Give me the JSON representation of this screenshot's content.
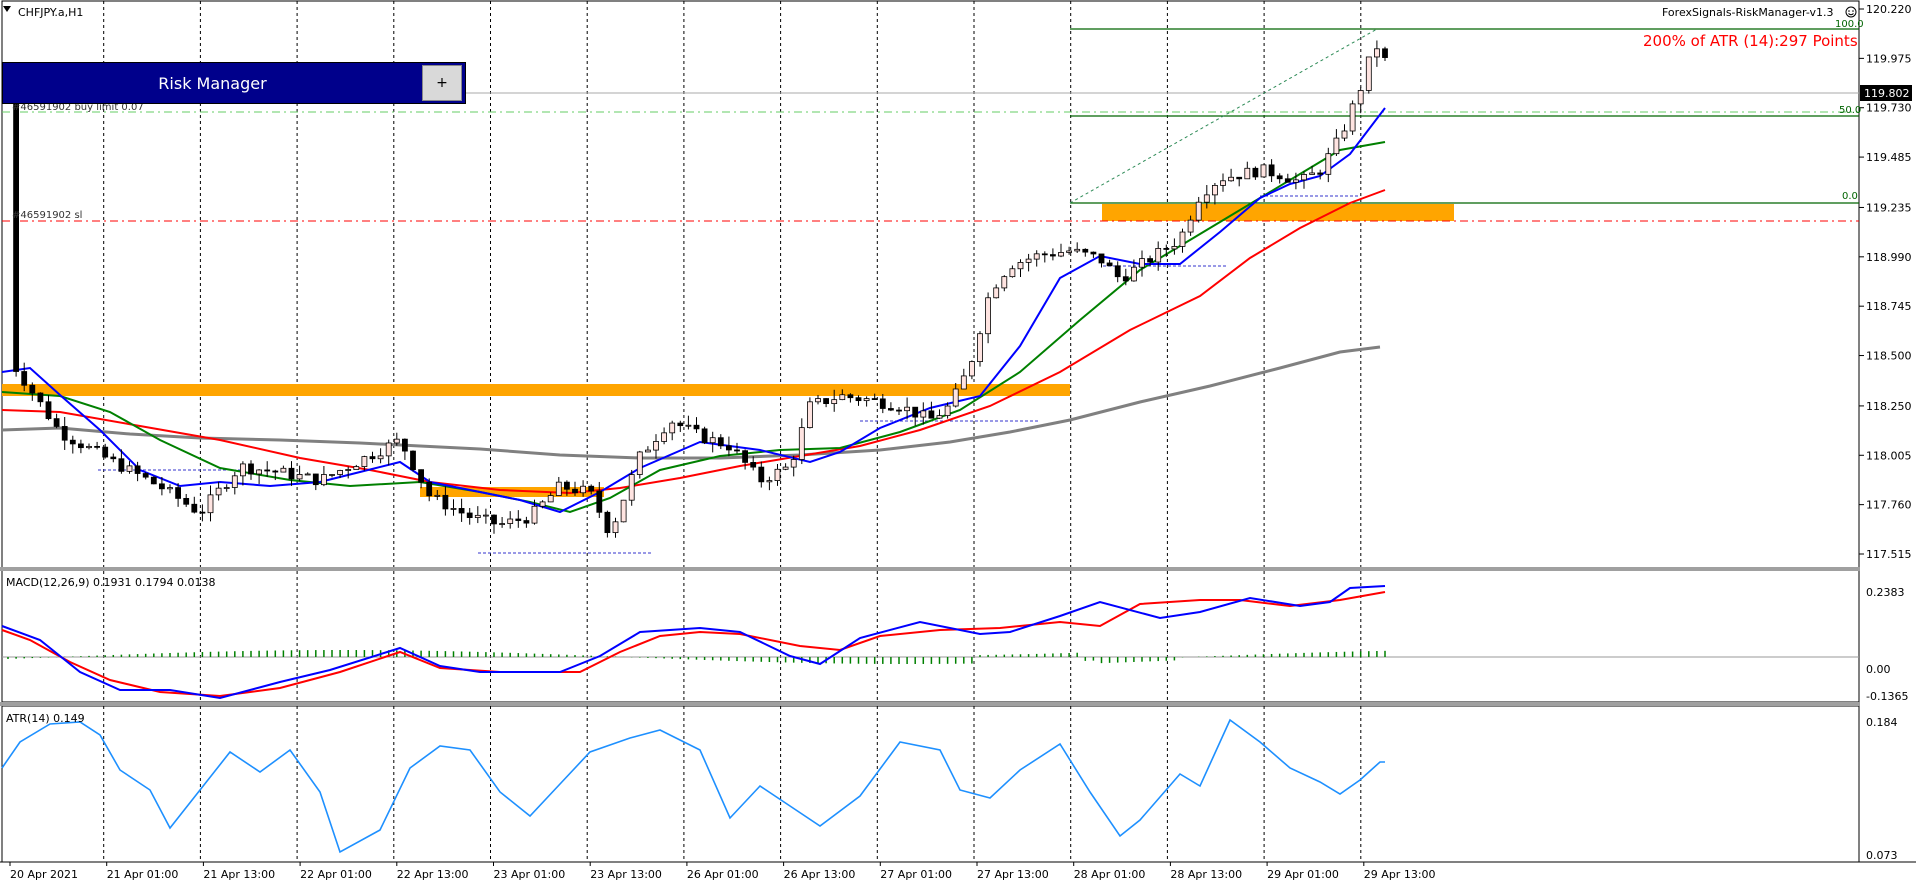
{
  "chart": {
    "symbol_label": "CHFJPY.a,H1",
    "indicator_name": "ForexSignals-RiskManager-v1.3",
    "smiley_icon": "smiley-icon",
    "atr_text": "200% of ATR (14):297 Points",
    "current_price": "119.802",
    "price_ticks": [
      "120.220",
      "119.975",
      "119.730",
      "119.485",
      "119.235",
      "118.990",
      "118.745",
      "118.500",
      "118.250",
      "118.005",
      "117.760",
      "117.515"
    ],
    "time_ticks": [
      "20 Apr 2021",
      "21 Apr 01:00",
      "21 Apr 13:00",
      "22 Apr 01:00",
      "22 Apr 13:00",
      "23 Apr 01:00",
      "23 Apr 13:00",
      "26 Apr 01:00",
      "26 Apr 13:00",
      "27 Apr 01:00",
      "27 Apr 13:00",
      "28 Apr 01:00",
      "28 Apr 13:00",
      "29 Apr 01:00",
      "29 Apr 13:00"
    ],
    "fib_labels": [
      "100.0",
      "50.0",
      "0.0"
    ],
    "order_labels": {
      "buy_limit": "#46591902 buy limit 0.07",
      "sl": "#46591902 sl"
    },
    "colors": {
      "ema_fast": "#0000ff",
      "ema_mid": "#008000",
      "ema_slow": "#ff0000",
      "sma_long": "#808080",
      "zone": "#ffa500",
      "bull_body": "#ffe4e1",
      "atr_line": "#1e90ff",
      "fib": "#006400",
      "sl_line": "#ff0000"
    }
  },
  "risk_manager": {
    "title": "Risk Manager",
    "button_label": "+"
  },
  "macd": {
    "label": "MACD(12,26,9) 0.1931 0.1794 0.0138",
    "ticks": [
      "0.2383",
      "0.00",
      "-0.1365"
    ]
  },
  "atr": {
    "label": "ATR(14) 0.149",
    "ticks": [
      "0.184",
      "0.073"
    ]
  }
}
